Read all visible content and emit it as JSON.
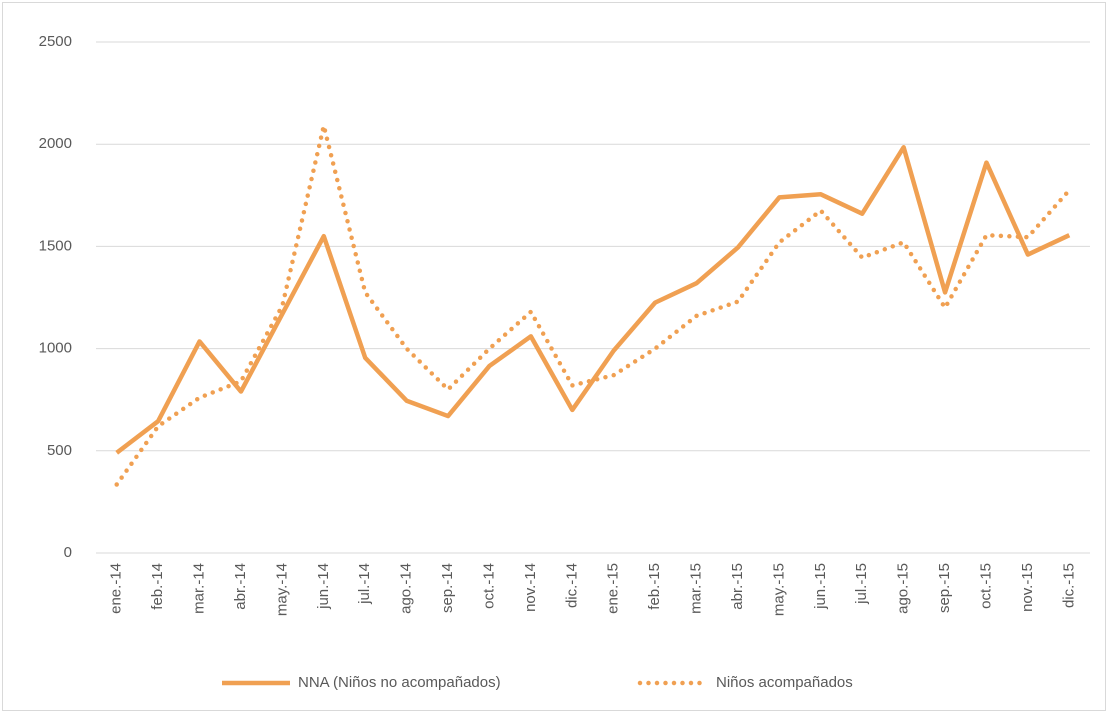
{
  "chart_data": {
    "type": "line",
    "categories": [
      "ene.-14",
      "feb.-14",
      "mar.-14",
      "abr.-14",
      "may.-14",
      "jun.-14",
      "jul.-14",
      "ago.-14",
      "sep.-14",
      "oct.-14",
      "nov.-14",
      "dic.-14",
      "ene.-15",
      "feb.-15",
      "mar.-15",
      "abr.-15",
      "may.-15",
      "jun.-15",
      "jul.-15",
      "ago.-15",
      "sep.-15",
      "oct.-15",
      "nov.-15",
      "dic.-15"
    ],
    "series": [
      {
        "name": "NNA (Niños no acompañados)",
        "color": "#f0a052",
        "style": "solid",
        "values": [
          490,
          645,
          1035,
          790,
          1170,
          1550,
          955,
          745,
          670,
          915,
          1060,
          700,
          990,
          1225,
          1320,
          1495,
          1740,
          1755,
          1660,
          1985,
          1275,
          1910,
          1460,
          1555
        ]
      },
      {
        "name": "Niños acompañados",
        "color": "#f0a052",
        "style": "dotted",
        "values": [
          335,
          620,
          760,
          840,
          1210,
          2090,
          1275,
          1000,
          800,
          1000,
          1180,
          820,
          870,
          1000,
          1160,
          1230,
          1520,
          1675,
          1445,
          1520,
          1200,
          1555,
          1545,
          1775
        ]
      }
    ],
    "ylim": [
      0,
      2500
    ],
    "yticks": [
      0,
      500,
      1000,
      1500,
      2000,
      2500
    ],
    "grid": true,
    "legend": "bottom"
  }
}
